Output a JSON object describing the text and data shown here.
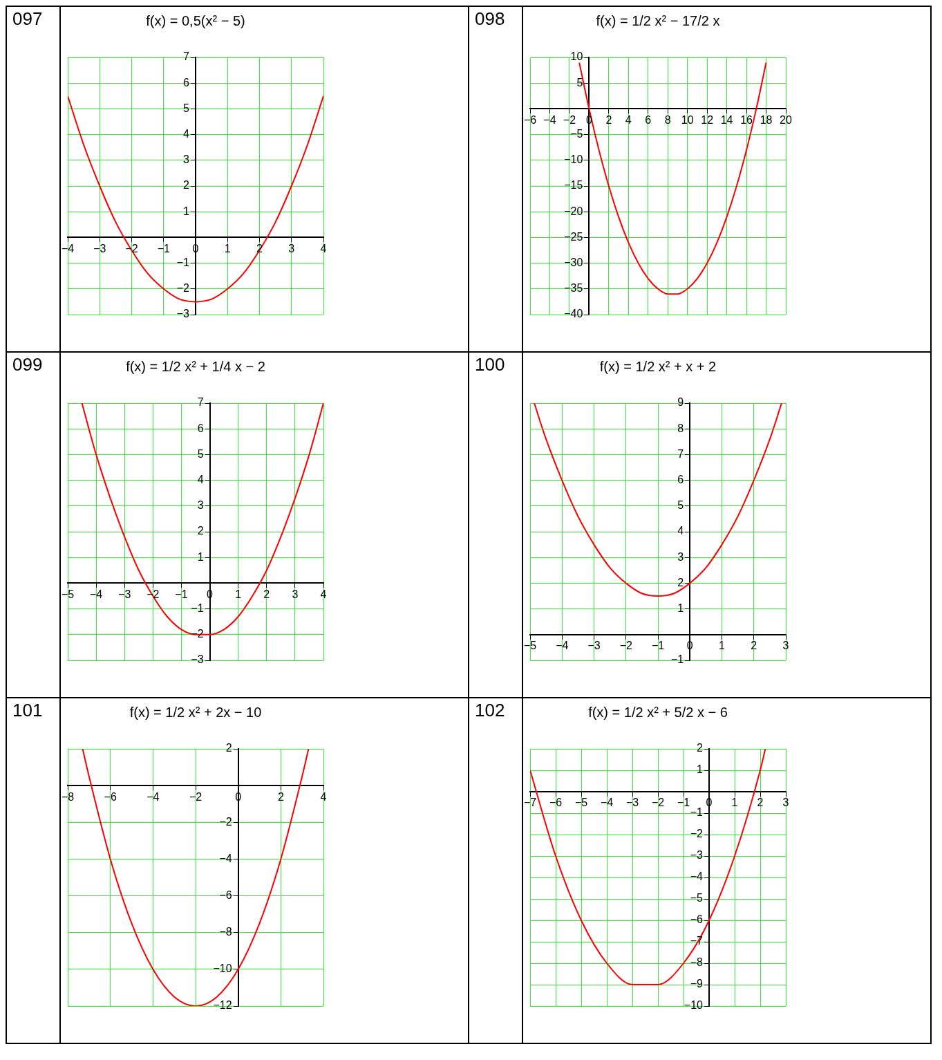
{
  "chart_data": [
    {
      "type": "line",
      "title": "f(x) = 0,5(x² − 5)",
      "annotations": [
        "097"
      ],
      "color": "#ff0000",
      "grid": true,
      "xlim": [
        -4,
        4
      ],
      "ylim": [
        -3,
        7
      ],
      "xticks": [
        -4,
        -3,
        -2,
        -1,
        0,
        1,
        2,
        3,
        4
      ],
      "yticks": [
        -3,
        -2,
        -1,
        1,
        2,
        3,
        4,
        5,
        6,
        7
      ],
      "x": [
        -4,
        -3.5,
        -3,
        -2.5,
        -2,
        -1.5,
        -1,
        -0.5,
        0,
        0.5,
        1,
        1.5,
        2,
        2.5,
        3,
        3.5,
        4
      ],
      "values": [
        5.5,
        3.6,
        2,
        0.6,
        -0.5,
        -1.4,
        -2,
        -2.4,
        -2.5,
        -2.4,
        -2,
        -1.4,
        -0.5,
        0.6,
        2,
        3.6,
        5.5
      ]
    },
    {
      "type": "line",
      "title": "f(x) = 1/2 x² − 17/2 x",
      "annotations": [
        "098"
      ],
      "color": "#ff0000",
      "grid": true,
      "xlim": [
        -6,
        20
      ],
      "ylim": [
        -40,
        10
      ],
      "xticks": [
        -6,
        -4,
        -2,
        0,
        2,
        4,
        6,
        8,
        10,
        12,
        14,
        16,
        18,
        20
      ],
      "yticks": [
        -40,
        -35,
        -30,
        -25,
        -20,
        -15,
        -10,
        -5,
        5,
        10
      ],
      "x": [
        -1,
        0,
        1,
        2,
        3,
        4,
        5,
        6,
        7,
        8,
        9,
        10,
        11,
        12,
        13,
        14,
        15,
        16,
        17,
        18
      ],
      "values": [
        9,
        0,
        -8,
        -15,
        -21,
        -26,
        -30,
        -33,
        -35,
        -36,
        -36,
        -35,
        -33,
        -30,
        -26,
        -21,
        -15,
        -8,
        0,
        9
      ]
    },
    {
      "type": "line",
      "title": "f(x) = 1/2 x² + 1/4 x − 2",
      "annotations": [
        "099"
      ],
      "color": "#ff0000",
      "grid": true,
      "xlim": [
        -5,
        4
      ],
      "ylim": [
        -3,
        7
      ],
      "xticks": [
        -5,
        -4,
        -3,
        -2,
        -1,
        0,
        1,
        2,
        3,
        4
      ],
      "yticks": [
        -3,
        -2,
        -1,
        1,
        2,
        3,
        4,
        5,
        6,
        7
      ],
      "x": [
        -4.5,
        -4,
        -3.5,
        -3,
        -2.5,
        -2,
        -1.5,
        -1,
        -0.5,
        0,
        0.5,
        1,
        1.5,
        2,
        2.5,
        3,
        3.5,
        4
      ],
      "values": [
        7,
        5,
        3.3,
        1.8,
        0.5,
        -0.5,
        -1.3,
        -1.8,
        -2,
        -2,
        -1.8,
        -1.3,
        -0.5,
        0.5,
        1.8,
        3.3,
        5,
        7
      ]
    },
    {
      "type": "line",
      "title": "f(x) = 1/2 x² + x + 2",
      "annotations": [
        "100"
      ],
      "color": "#ff0000",
      "grid": true,
      "xlim": [
        -5,
        3
      ],
      "ylim": [
        -1,
        9
      ],
      "xticks": [
        -5,
        -4,
        -3,
        -2,
        -1,
        0,
        1,
        2,
        3
      ],
      "yticks": [
        -1,
        1,
        2,
        3,
        4,
        5,
        6,
        7,
        8,
        9
      ],
      "x": [
        -4.87,
        -4.5,
        -4,
        -3.5,
        -3,
        -2.5,
        -2,
        -1.5,
        -1,
        -0.5,
        0,
        0.5,
        1,
        1.5,
        2,
        2.5,
        2.87
      ],
      "values": [
        9,
        7.6,
        6,
        4.6,
        3.5,
        2.6,
        2,
        1.6,
        1.5,
        1.6,
        2,
        2.6,
        3.5,
        4.6,
        6,
        7.6,
        9
      ]
    },
    {
      "type": "line",
      "title": "f(x) = 1/2 x² + 2x − 10",
      "annotations": [
        "101"
      ],
      "color": "#ff0000",
      "grid": true,
      "xlim": [
        -8,
        4
      ],
      "ylim": [
        -12,
        2
      ],
      "xticks": [
        -8,
        -6,
        -4,
        -2,
        0,
        2,
        4
      ],
      "yticks": [
        -12,
        -10,
        -8,
        -6,
        -4,
        -2,
        2
      ],
      "x": [
        -7.3,
        -7,
        -6,
        -5,
        -4,
        -3,
        -2,
        -1,
        0,
        1,
        2,
        3,
        3.3
      ],
      "values": [
        2,
        0.5,
        -4,
        -7.5,
        -10,
        -11.5,
        -12,
        -11.5,
        -10,
        -7.5,
        -4,
        0.5,
        2
      ]
    },
    {
      "type": "line",
      "title": "f(x) = 1/2 x² + 5/2 x − 6",
      "annotations": [
        "102"
      ],
      "color": "#ff0000",
      "grid": true,
      "xlim": [
        -7,
        3
      ],
      "ylim": [
        -10,
        2
      ],
      "xticks": [
        -7,
        -6,
        -5,
        -4,
        -3,
        -2,
        -1,
        0,
        1,
        2,
        3
      ],
      "yticks": [
        -10,
        -9,
        -8,
        -7,
        -6,
        -5,
        -4,
        -3,
        -2,
        -1,
        1,
        2
      ],
      "x": [
        -7,
        -6,
        -5,
        -4,
        -3,
        -2,
        -1,
        0,
        1,
        2,
        2.2
      ],
      "values": [
        1,
        -3,
        -6,
        -8,
        -9,
        -9,
        -8,
        -6,
        -3,
        1,
        2
      ]
    }
  ]
}
